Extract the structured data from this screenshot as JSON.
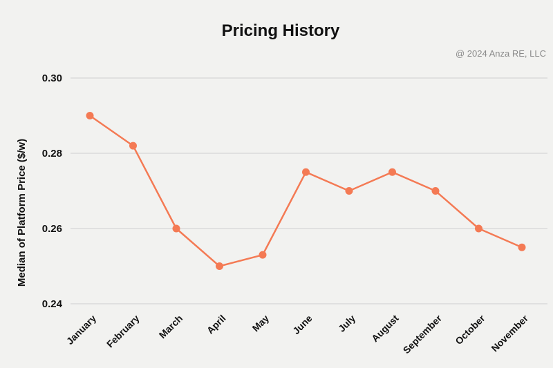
{
  "chart_data": {
    "type": "line",
    "title": "Pricing History",
    "credit": "@ 2024 Anza RE, LLC",
    "xlabel": "",
    "ylabel": "Median of Platform Price ($/w)",
    "categories": [
      "January",
      "February",
      "March",
      "April",
      "May",
      "June",
      "July",
      "August",
      "September",
      "October",
      "November"
    ],
    "series": [
      {
        "values": [
          0.29,
          0.282,
          0.26,
          0.25,
          0.253,
          0.275,
          0.27,
          0.275,
          0.27,
          0.26,
          0.255
        ]
      }
    ],
    "ylim": [
      0.24,
      0.3
    ],
    "yticks": [
      "0.24",
      "0.26",
      "0.28",
      "0.30"
    ],
    "grid": true,
    "legend": "none",
    "colors": {
      "line": "#f47a54",
      "grid": "#cfcfcf",
      "background": "#f2f2f0"
    }
  }
}
